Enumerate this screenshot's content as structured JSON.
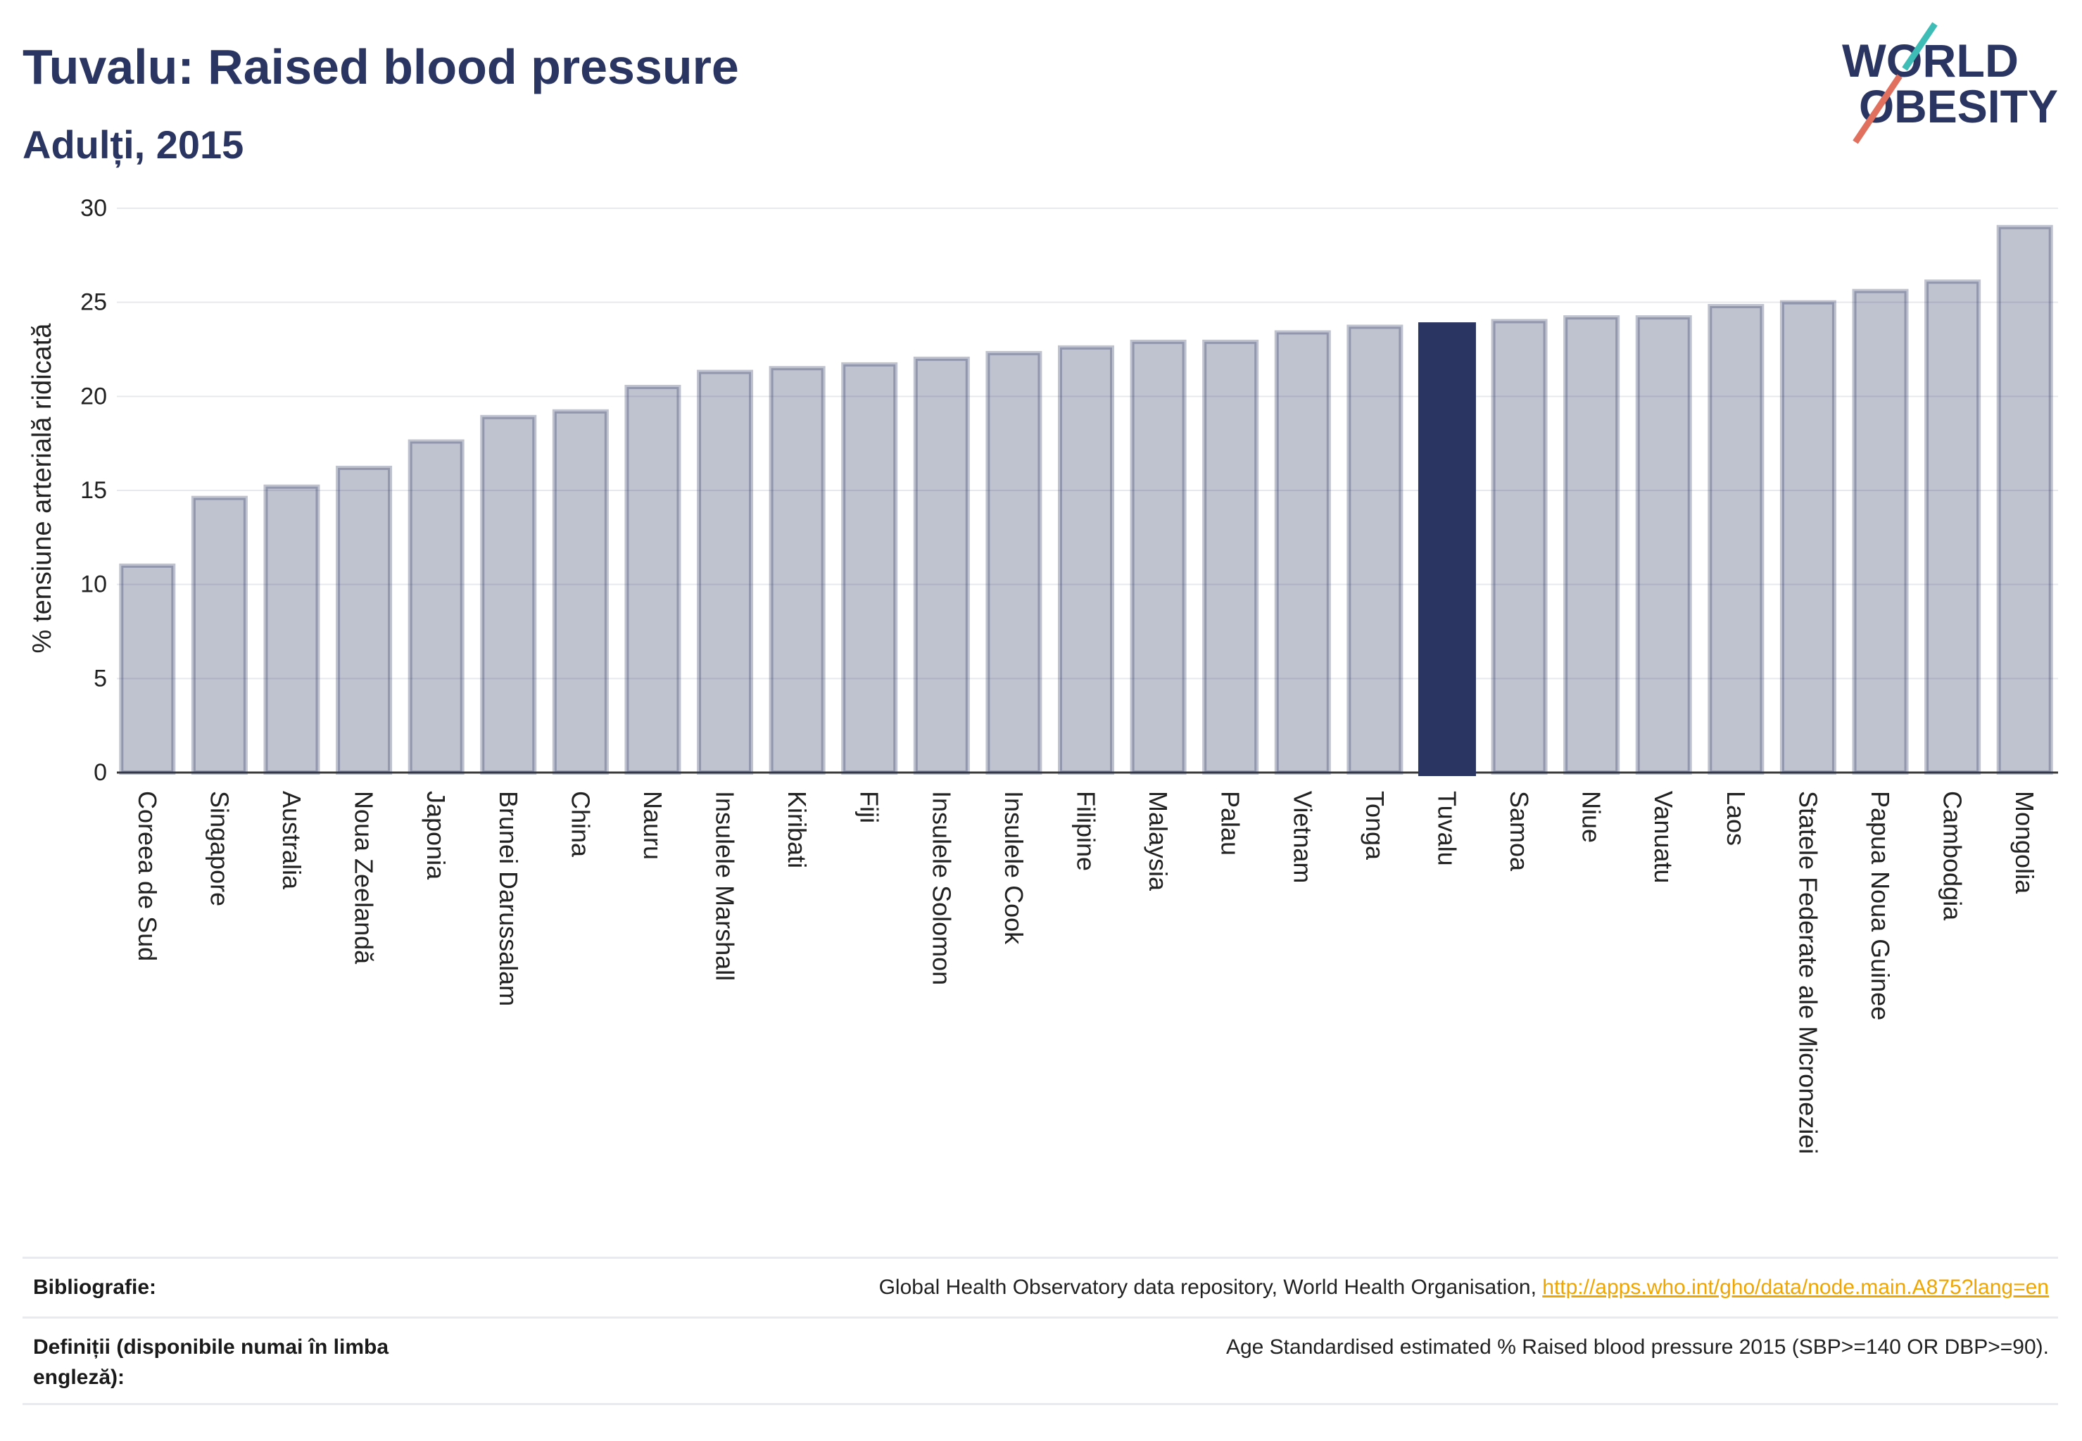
{
  "chart_data": {
    "type": "bar",
    "title": "Tuvalu: Raised blood pressure",
    "subtitle": "Adulți, 2015",
    "xlabel": "",
    "ylabel": "% tensiune arterială ridicată",
    "ylim": [
      0,
      30
    ],
    "yticks": [
      0,
      5,
      10,
      15,
      20,
      25,
      30
    ],
    "grid": true,
    "highlight_index": 18,
    "categories": [
      "Coreea de Sud",
      "Singapore",
      "Australia",
      "Noua Zeelandă",
      "Japonia",
      "Brunei Darussalam",
      "China",
      "Nauru",
      "Insulele Marshall",
      "Kiribati",
      "Fiji",
      "Insulele Solomon",
      "Insulele Cook",
      "Filipine",
      "Malaysia",
      "Palau",
      "Vietnam",
      "Tonga",
      "Tuvalu",
      "Samoa",
      "Niue",
      "Vanuatu",
      "Laos",
      "Statele Federate ale Microneziei",
      "Papua Noua Guinee",
      "Cambodgia",
      "Mongolia"
    ],
    "values": [
      11.0,
      14.6,
      15.2,
      16.2,
      17.6,
      18.9,
      19.2,
      20.5,
      21.3,
      21.5,
      21.7,
      22.0,
      22.3,
      22.6,
      22.9,
      22.9,
      23.4,
      23.7,
      23.9,
      24.0,
      24.2,
      24.2,
      24.8,
      25.0,
      25.6,
      26.1,
      29.0
    ]
  },
  "logo": {
    "line1": "WORLD",
    "line2": "OBESITY"
  },
  "footer": {
    "bibliography_label": "Bibliografie:",
    "bibliography_text": "Global Health Observatory data repository, World Health Organisation, ",
    "bibliography_link": "http://apps.who.int/gho/data/node.main.A875?lang=en",
    "definitions_label": "Definiții (disponibile numai în limba engleză):",
    "definitions_text": "Age Standardised estimated % Raised blood pressure 2015 (SBP>=140 OR DBP>=90)."
  },
  "colors": {
    "title": "#2b3561",
    "bar": "#2b3561",
    "highlight_bar": "#2b3561",
    "gridline": "#e8e9ee",
    "axis": "#3a3a3a",
    "link": "#f0a500",
    "logo_teal": "#3dbdb6",
    "logo_coral": "#e2705f"
  }
}
